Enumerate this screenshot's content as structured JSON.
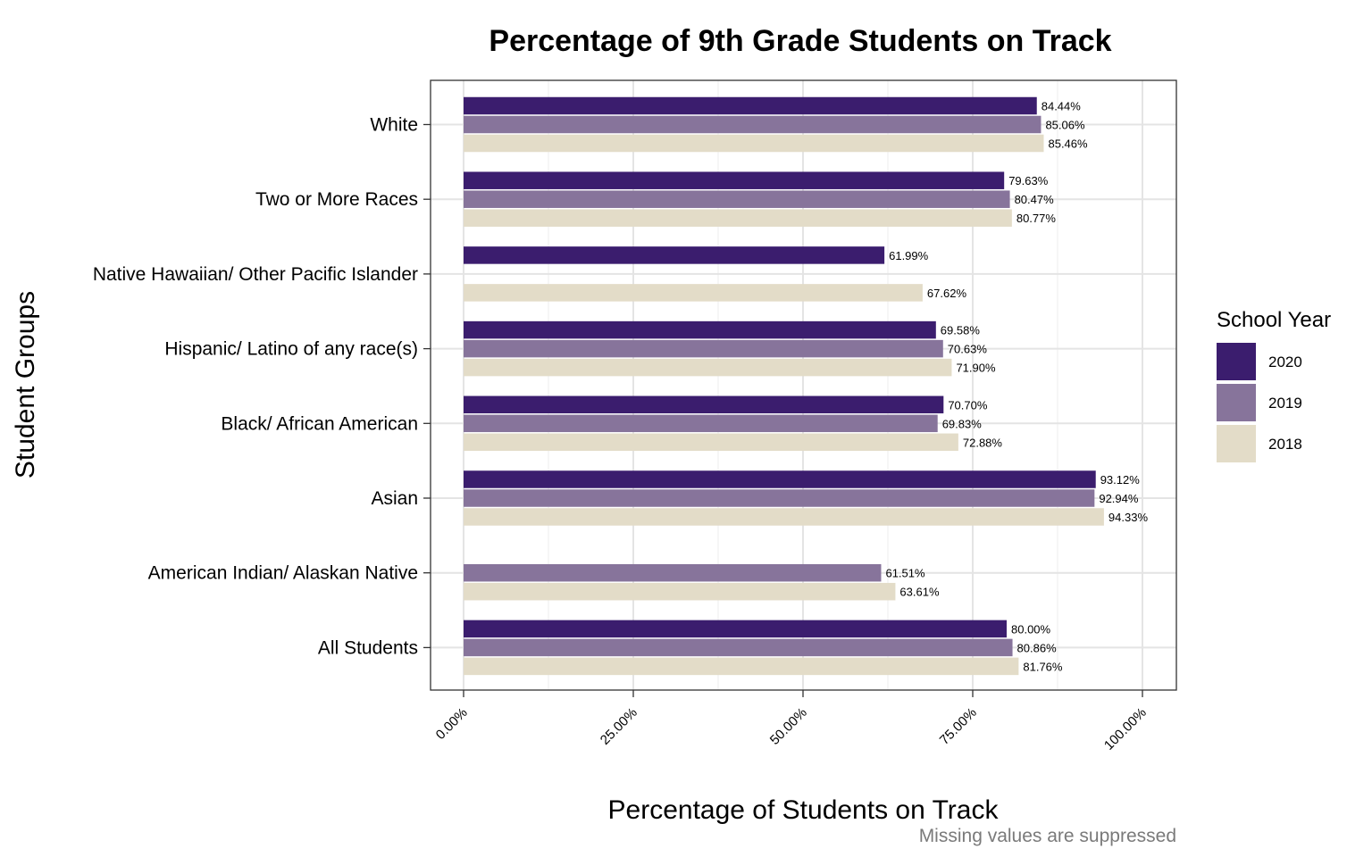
{
  "chart_data": {
    "type": "bar",
    "orientation": "horizontal",
    "title": "Percentage of 9th Grade Students on Track",
    "xlabel": "Percentage of Students on Track",
    "ylabel": "Student Groups",
    "caption": "Missing values are suppressed",
    "xlim": [
      0,
      100
    ],
    "x_ticks": [
      0,
      25,
      50,
      75,
      100
    ],
    "x_tick_labels": [
      "0.00%",
      "25.00%",
      "50.00%",
      "75.00%",
      "100.00%"
    ],
    "grid": true,
    "legend": {
      "title": "School Year",
      "position": "right"
    },
    "categories": [
      "White",
      "Two or More Races",
      "Native Hawaiian/ Other Pacific Islander",
      "Hispanic/ Latino of any race(s)",
      "Black/ African American",
      "Asian",
      "American Indian/ Alaskan Native",
      "All Students"
    ],
    "series": [
      {
        "name": "2020",
        "color": "#3b1d6e",
        "values": [
          84.44,
          79.63,
          61.99,
          69.58,
          70.7,
          93.12,
          null,
          80.0
        ],
        "labels": [
          "84.44%",
          "79.63%",
          "61.99%",
          "69.58%",
          "70.70%",
          "93.12%",
          null,
          "80.00%"
        ]
      },
      {
        "name": "2019",
        "color": "#87749b",
        "values": [
          85.06,
          80.47,
          null,
          70.63,
          69.83,
          92.94,
          61.51,
          80.86
        ],
        "labels": [
          "85.06%",
          "80.47%",
          null,
          "70.63%",
          "69.83%",
          "92.94%",
          "61.51%",
          "80.86%"
        ]
      },
      {
        "name": "2018",
        "color": "#e3dcc8",
        "values": [
          85.46,
          80.77,
          67.62,
          71.9,
          72.88,
          94.33,
          63.61,
          81.76
        ],
        "labels": [
          "85.46%",
          "80.77%",
          "67.62%",
          "71.90%",
          "72.88%",
          "94.33%",
          "63.61%",
          "81.76%"
        ]
      }
    ]
  }
}
